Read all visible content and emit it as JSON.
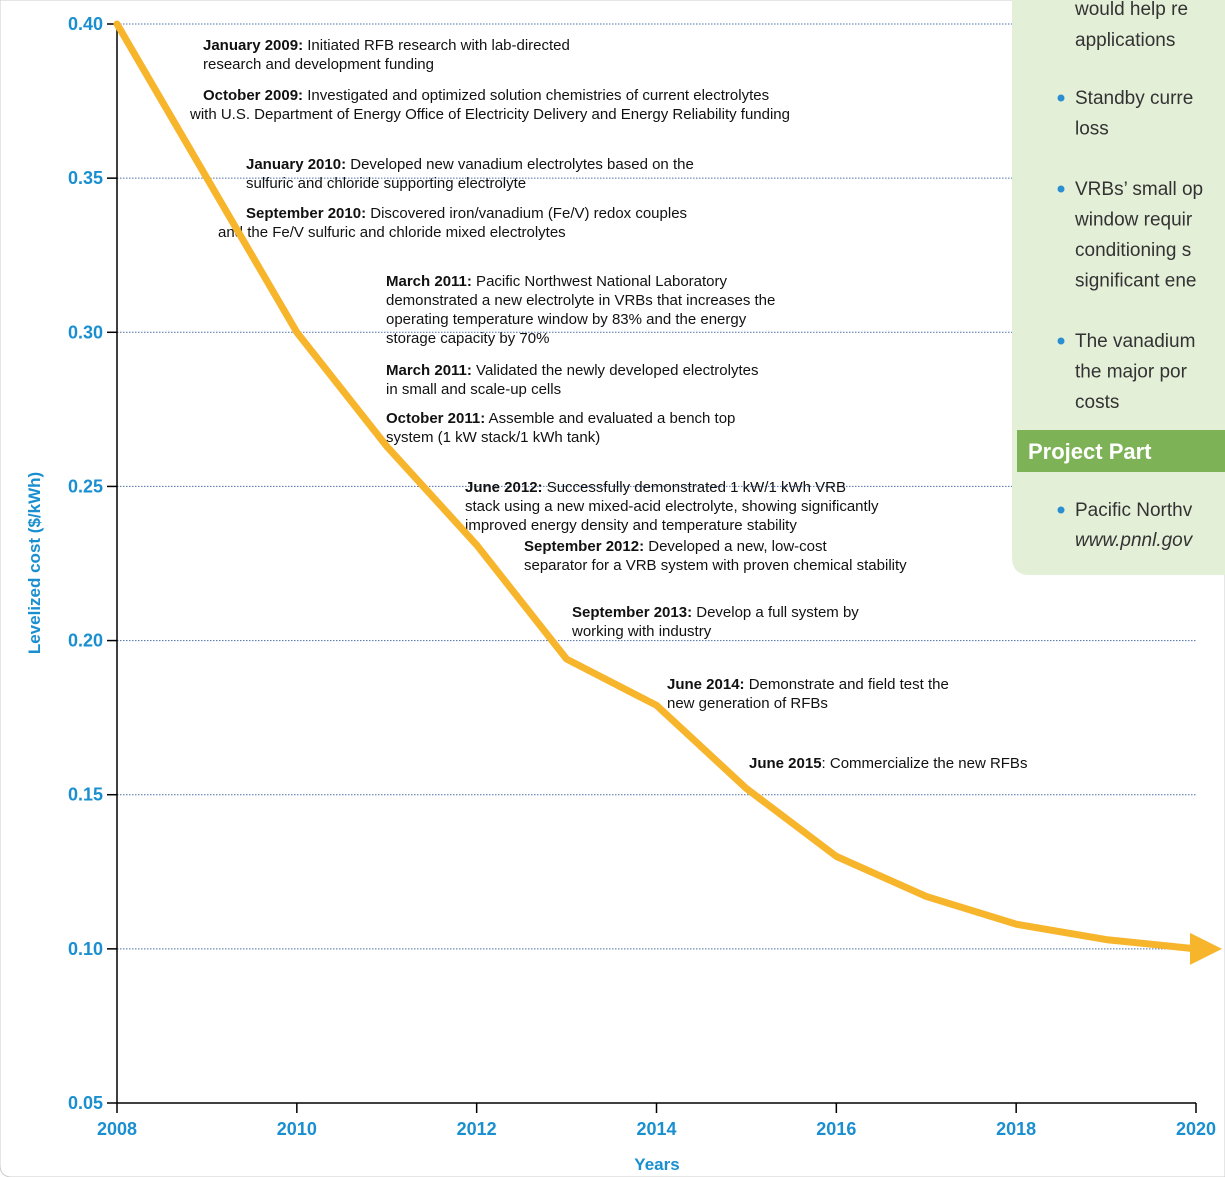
{
  "chart_data": {
    "type": "line",
    "ylabel": "Levelized cost ($/kWh)",
    "xlabel": "Years",
    "x": [
      2008,
      2009,
      2010,
      2011,
      2012,
      2013,
      2014,
      2015,
      2016,
      2017,
      2018,
      2019,
      2020
    ],
    "series": [
      {
        "color": "#f7b52c",
        "values": [
          0.4,
          0.35,
          0.3,
          0.263,
          0.231,
          0.194,
          0.179,
          0.152,
          0.13,
          0.117,
          0.108,
          0.103,
          0.1
        ]
      }
    ],
    "xlim": [
      2008,
      2020
    ],
    "xticks": [
      2008,
      2010,
      2012,
      2014,
      2016,
      2018,
      2020
    ],
    "ylim": [
      0.05,
      0.4
    ],
    "yticks": [
      {
        "value": 0.05,
        "label": "0.05"
      },
      {
        "value": 0.1,
        "label": "0.10"
      },
      {
        "value": 0.15,
        "label": "0.15"
      },
      {
        "value": 0.2,
        "label": "0.20"
      },
      {
        "value": 0.25,
        "label": "0.25"
      },
      {
        "value": 0.3,
        "label": "0.30"
      },
      {
        "value": 0.35,
        "label": "0.35"
      },
      {
        "value": 0.4,
        "label": "0.40"
      }
    ],
    "grid": true,
    "annotations": [
      {
        "date": "January 2009:",
        "lines": [
          " Initiated RFB research with lab-directed",
          "research and development funding"
        ]
      },
      {
        "date": "October 2009:",
        "lines": [
          " Investigated and optimized solution chemistries of current electrolytes",
          "with U.S. Department of Energy Office of Electricity Delivery and Energy Reliability funding"
        ]
      },
      {
        "date": "January 2010:",
        "lines": [
          " Developed new vanadium electrolytes based on the",
          "sulfuric and chloride supporting electrolyte"
        ]
      },
      {
        "date": "September 2010:",
        "lines": [
          " Discovered iron/vanadium (Fe/V) redox couples",
          "and the Fe/V sulfuric and chloride mixed electrolytes"
        ]
      },
      {
        "date": "March 2011:",
        "lines": [
          " Pacific Northwest National Laboratory",
          "demonstrated a new electrolyte in VRBs that increases the",
          "operating temperature window by 83% and the energy",
          "storage capacity by 70%"
        ]
      },
      {
        "date": "March 2011:",
        "lines": [
          " Validated the newly developed electrolytes",
          "in small and scale-up cells"
        ]
      },
      {
        "date": "October 2011:",
        "lines": [
          " Assemble and evaluated a bench top",
          "system (1 kW stack/1 kWh tank)"
        ]
      },
      {
        "date": "June 2012:",
        "lines": [
          " Successfully demonstrated 1 kW/1 kWh VRB",
          "stack using a new mixed-acid electrolyte, showing significantly",
          "improved energy density and temperature stability"
        ]
      },
      {
        "date": "September 2012:",
        "lines": [
          " Developed a new, low-cost",
          "separator for a VRB system with proven chemical stability"
        ]
      },
      {
        "date": "September 2013:",
        "lines": [
          " Develop a full system by",
          "working with industry"
        ]
      },
      {
        "date": "June 2014:",
        "lines": [
          " Demonstrate and field test the",
          "new generation of RFBs"
        ]
      },
      {
        "date": "June 2015",
        "lines": [
          ": Commercialize the new RFBs"
        ]
      }
    ]
  },
  "sidebar": {
    "continued_lines": [
      "would help re",
      "applications"
    ],
    "bullets": [
      [
        "Standby curre",
        "loss"
      ],
      [
        "VRBs’ small op",
        "window requir",
        "conditioning s",
        "significant ene"
      ],
      [
        "The vanadium",
        "the major por",
        "costs"
      ]
    ],
    "heading": "Project Part",
    "partners": [
      [
        "Pacific Northv",
        "www.pnnl.gov"
      ]
    ]
  }
}
